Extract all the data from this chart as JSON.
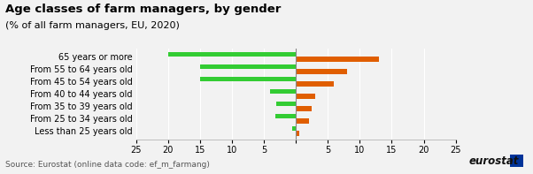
{
  "title": "Age classes of farm managers, by gender",
  "subtitle": "(% of all farm managers, EU, 2020)",
  "source": "Source: Eurostat (online data code: ef_m_farmang)",
  "categories": [
    "Less than 25 years old",
    "From 25 to 34 years old",
    "From 35 to 39 years old",
    "From 40 to 44 years old",
    "From 45 to 54 years old",
    "From 55 to 64 years old",
    "65 years or more"
  ],
  "males": [
    0.5,
    3.2,
    3.0,
    4.0,
    15.0,
    15.0,
    20.0
  ],
  "females": [
    0.5,
    2.0,
    2.5,
    3.0,
    6.0,
    8.0,
    13.0
  ],
  "male_color": "#33cc33",
  "female_color": "#e05e00",
  "bg_color": "#f2f2f2",
  "xlim": 25,
  "bar_height": 0.38,
  "title_fontsize": 9.5,
  "subtitle_fontsize": 8,
  "tick_fontsize": 7,
  "label_fontsize": 7,
  "source_fontsize": 6.5,
  "legend_fontsize": 7.5
}
